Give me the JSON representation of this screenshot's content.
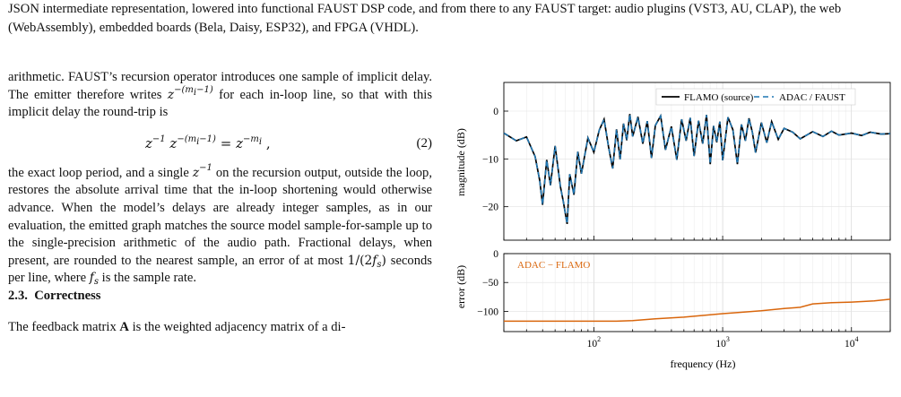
{
  "intro_text": "JSON intermediate representation, lowered into functional FAUST DSP code, and from there to any FAUST target: audio plugins (VST3, AU, CLAP), the web (WebAssembly), embedded boards (Bela, Daisy, ESP32), and FPGA (VHDL).",
  "para1": {
    "before": "arithmetic. FAUST’s recursion operator introduces one sample of implicit delay. The emitter therefore writes ",
    "after": " for each in-loop line, so that with this implicit delay the round-trip is"
  },
  "equation": {
    "number": "(2)"
  },
  "para2": {
    "t1": "the exact loop period, and a single ",
    "t2": " on the recursion output, outside the loop, restores the absolute arrival time that the in-loop shortening would otherwise advance. When the model’s delays are already integer samples, as in our evaluation, the emitted graph matches the source model sample-for-sample up to the single-precision arithmetic of the audio path. Fractional delays, when present, are rounded to the nearest sample, an error of at most ",
    "t3": " seconds per line, where ",
    "t4": " is the sample rate."
  },
  "section": {
    "number": "2.3.",
    "title": "Correctness"
  },
  "para3": {
    "t1": "The feedback matrix ",
    "t2": " is the weighted adjacency matrix of a di-"
  },
  "chart_data": [
    {
      "type": "line",
      "title": "",
      "xlabel": "",
      "ylabel": "magnitude (dB)",
      "xscale": "log",
      "xlim": [
        20,
        20000
      ],
      "ylim": [
        -27,
        6
      ],
      "yticks": [
        0,
        -10,
        -20
      ],
      "grid": true,
      "legend": "top-right",
      "series": [
        {
          "name": "FLAMO (source)",
          "color": "#000000",
          "style": "solid"
        },
        {
          "name": "ADAC / FAUST",
          "color": "#1f77b4",
          "style": "dashed"
        }
      ],
      "x": [
        20,
        25,
        30,
        35,
        38,
        40,
        43,
        46,
        50,
        55,
        58,
        62,
        65,
        70,
        75,
        80,
        90,
        100,
        110,
        120,
        130,
        140,
        150,
        160,
        170,
        180,
        190,
        200,
        220,
        240,
        260,
        280,
        300,
        330,
        360,
        400,
        440,
        480,
        520,
        560,
        600,
        650,
        700,
        750,
        800,
        850,
        900,
        950,
        1000,
        1100,
        1200,
        1300,
        1400,
        1500,
        1600,
        1700,
        1800,
        2000,
        2200,
        2400,
        2700,
        3000,
        3500,
        4000,
        5000,
        6000,
        7000,
        8000,
        10000,
        12000,
        14000,
        17000,
        20000
      ],
      "values": [
        -4.6,
        -6.2,
        -5.4,
        -9.5,
        -14.5,
        -19.6,
        -10.2,
        -15.5,
        -7.3,
        -15.8,
        -19.0,
        -23.6,
        -13.2,
        -17.5,
        -8.5,
        -13.1,
        -5.6,
        -8.6,
        -4.0,
        -1.7,
        -7.5,
        -12.0,
        -3.8,
        -10.1,
        -2.6,
        -6.1,
        -0.6,
        -5.3,
        -1.2,
        -6.8,
        -2.1,
        -9.8,
        -3.0,
        -1.0,
        -8.1,
        -3.2,
        -10.2,
        -1.7,
        -6.2,
        -1.4,
        -9.4,
        -2.0,
        -6.8,
        -0.8,
        -11.1,
        -3.1,
        -6.5,
        -2.2,
        -10.3,
        -1.3,
        -3.9,
        -11.1,
        -2.8,
        -6.2,
        -1.5,
        -4.4,
        -8.7,
        -2.4,
        -6.6,
        -2.2,
        -5.9,
        -3.6,
        -4.4,
        -5.8,
        -4.3,
        -5.3,
        -4.2,
        -5.0,
        -4.6,
        -5.1,
        -4.4,
        -4.8,
        -4.7
      ]
    },
    {
      "type": "line",
      "title": "",
      "xlabel": "frequency (Hz)",
      "ylabel": "error (dB)",
      "xscale": "log",
      "xlim": [
        20,
        20000
      ],
      "ylim": [
        -135,
        0
      ],
      "yticks": [
        0,
        -50,
        -100
      ],
      "xticks": [
        "10^2",
        "10^3",
        "10^4"
      ],
      "grid": true,
      "annotation": "ADAC − FLAMO",
      "series": [
        {
          "name": "ADAC − FLAMO",
          "color": "#d9660c"
        }
      ],
      "x": [
        20,
        50,
        100,
        150,
        200,
        300,
        500,
        700,
        1000,
        1500,
        2000,
        3000,
        4000,
        5000,
        7000,
        10000,
        15000,
        20000
      ],
      "values": [
        -117,
        -117,
        -117,
        -117,
        -116,
        -113,
        -110,
        -107,
        -104,
        -101,
        -99,
        -95,
        -93,
        -87,
        -85,
        -84,
        -82,
        -79
      ]
    }
  ]
}
